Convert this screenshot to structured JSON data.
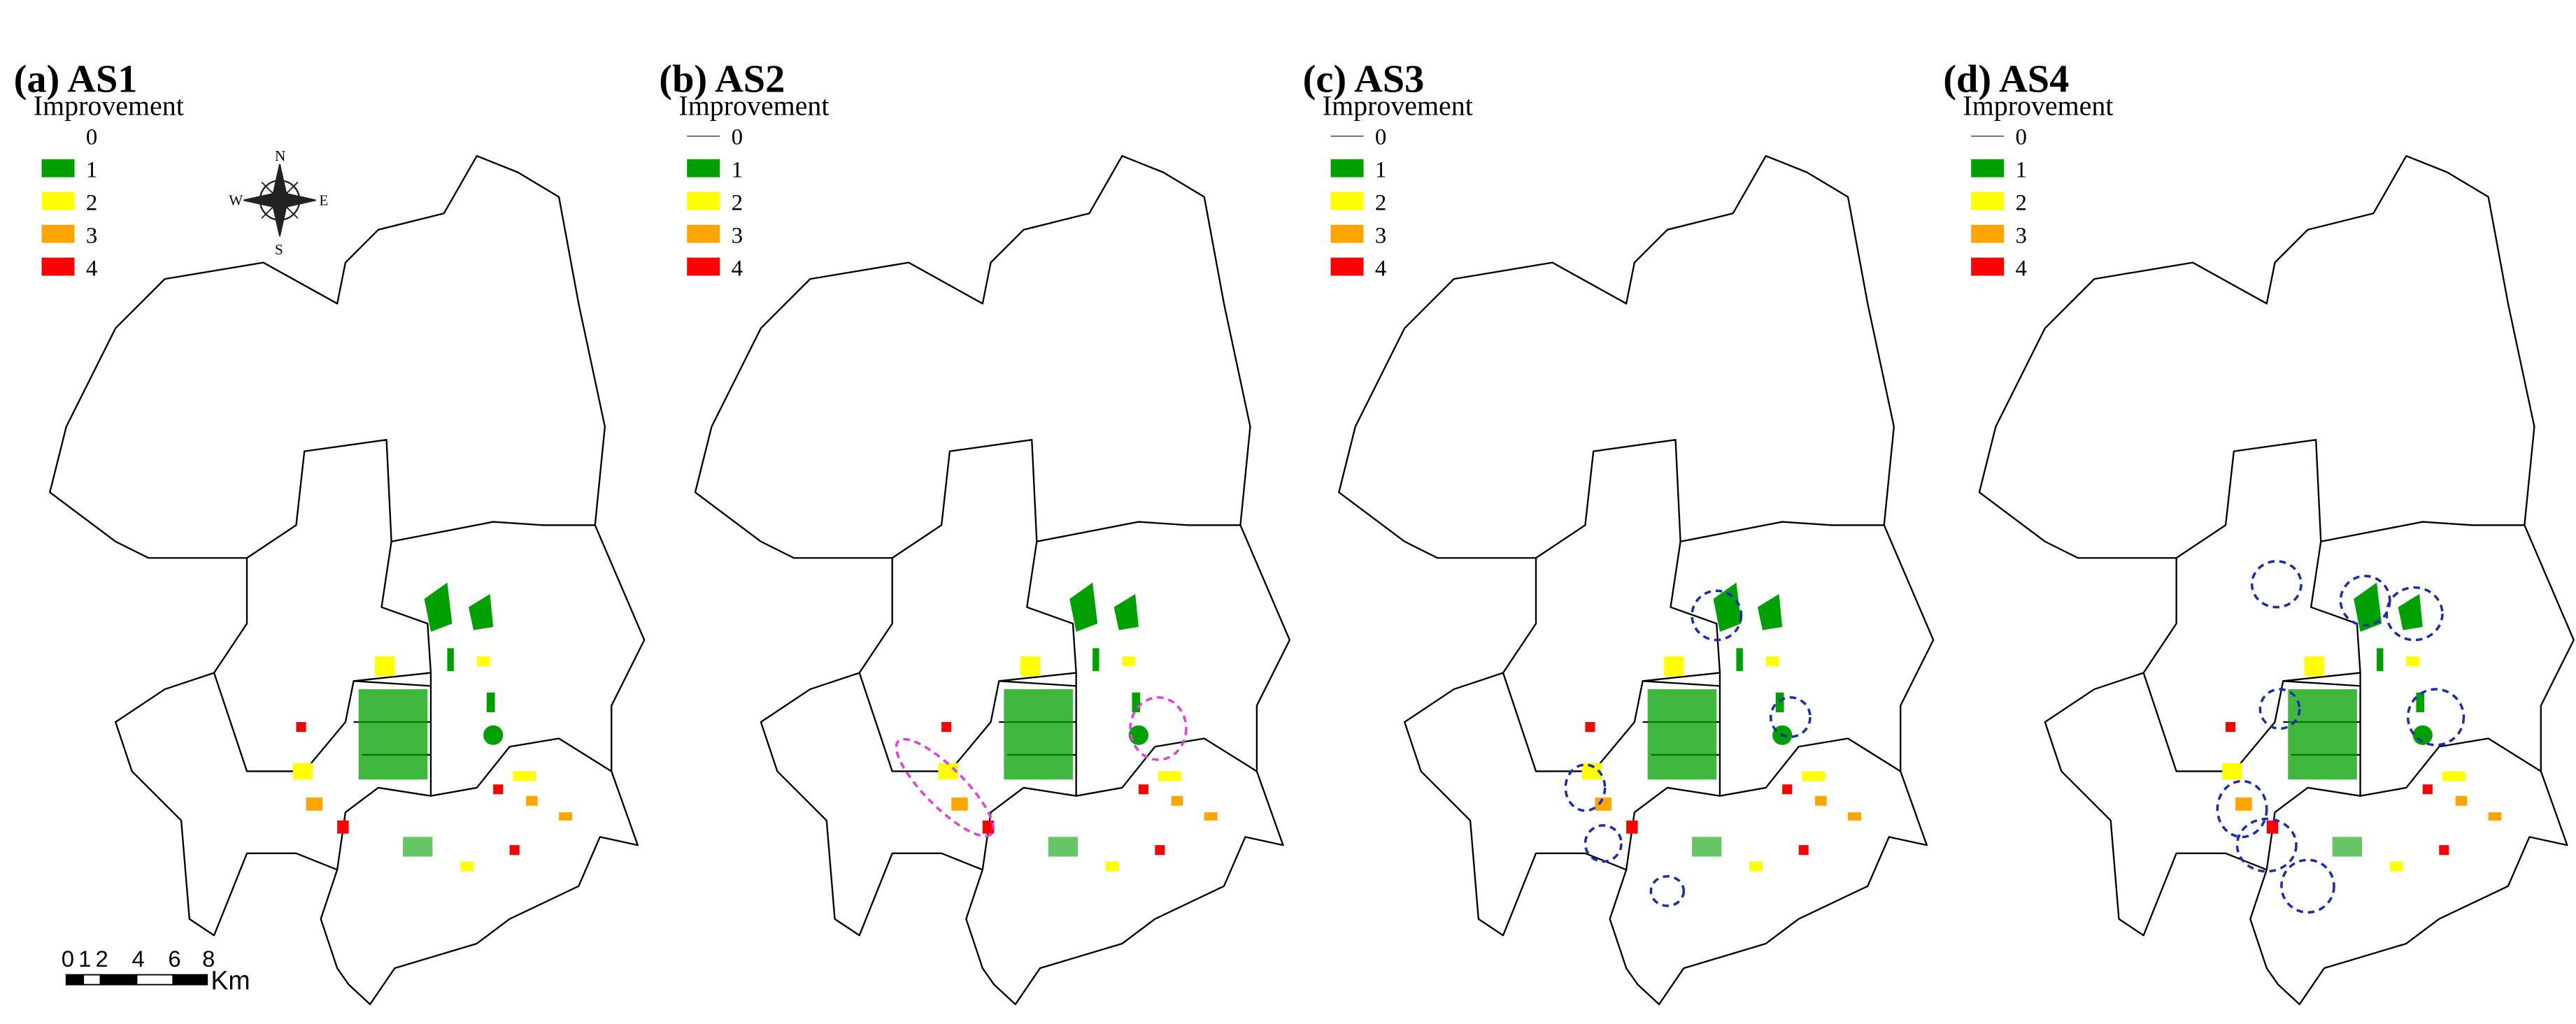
{
  "panels": [
    {
      "title": "(a) AS1",
      "legend_title": "Improvement",
      "legend_labels": [
        "0",
        "1",
        "2",
        "3",
        "4"
      ]
    },
    {
      "title": "(b) AS2",
      "legend_title": "Improvement",
      "legend_labels": [
        "0",
        "1",
        "2",
        "3",
        "4"
      ]
    },
    {
      "title": "(c) AS3",
      "legend_title": "Improvement",
      "legend_labels": [
        "0",
        "1",
        "2",
        "3",
        "4"
      ]
    },
    {
      "title": "(d) AS4",
      "legend_title": "Improvement",
      "legend_labels": [
        "0",
        "1",
        "2",
        "3",
        "4"
      ]
    }
  ],
  "legend_colors": [
    "#00a000",
    "#ffff00",
    "#ffa500",
    "#ff0000"
  ],
  "compass": {
    "n": "N",
    "s": "S",
    "e": "E",
    "w": "W"
  },
  "scale_bar": {
    "labels": [
      "0",
      "1",
      "2",
      "4",
      "6",
      "8"
    ],
    "unit": "Km"
  }
}
